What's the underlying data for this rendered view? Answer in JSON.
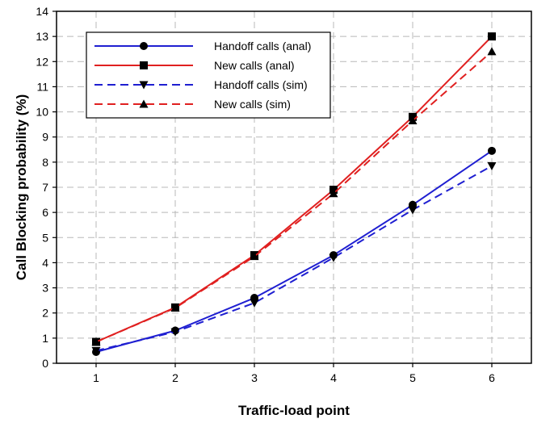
{
  "chart_data": {
    "type": "line",
    "title": "",
    "xlabel": "Traffic-load point",
    "ylabel": "Call Blocking probability (%)",
    "x": [
      1,
      2,
      3,
      4,
      5,
      6
    ],
    "xlim": [
      0.5,
      6.5
    ],
    "ylim": [
      0,
      14
    ],
    "x_ticks": [
      "1",
      "2",
      "3",
      "4",
      "5",
      "6"
    ],
    "y_ticks": [
      "0",
      "1",
      "2",
      "3",
      "4",
      "5",
      "6",
      "7",
      "8",
      "9",
      "10",
      "11",
      "12",
      "13",
      "14"
    ],
    "grid": true,
    "grid_style": "dashed",
    "legend_position": "top-left",
    "series": [
      {
        "name": "Handoff calls (anal)",
        "color": "#1f1fd1",
        "line_style": "solid",
        "marker": "circle",
        "values": [
          0.45,
          1.3,
          2.6,
          4.3,
          6.3,
          8.45
        ]
      },
      {
        "name": "New calls (anal)",
        "color": "#e02020",
        "line_style": "solid",
        "marker": "square",
        "values": [
          0.85,
          2.22,
          4.3,
          6.9,
          9.8,
          13.0
        ]
      },
      {
        "name": "Handoff calls (sim)",
        "color": "#1f1fd1",
        "line_style": "dashed",
        "marker": "triangle-down",
        "values": [
          0.5,
          1.25,
          2.4,
          4.2,
          6.1,
          7.85
        ]
      },
      {
        "name": "New calls (sim)",
        "color": "#e02020",
        "line_style": "dashed",
        "marker": "triangle-up",
        "values": [
          0.85,
          2.2,
          4.25,
          6.75,
          9.65,
          12.4
        ]
      }
    ]
  }
}
